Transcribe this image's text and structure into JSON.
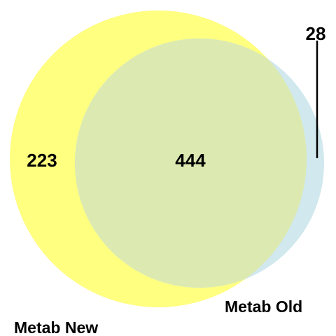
{
  "diagram": {
    "type": "venn",
    "sets": [
      {
        "name": "Metab New",
        "color": "#FFFF80"
      },
      {
        "name": "Metab Old",
        "color": "#D0E8EE"
      }
    ],
    "overlap_color": "#DCEAB2",
    "regions": {
      "only_new": "223",
      "both": "444",
      "only_old": "28"
    }
  }
}
